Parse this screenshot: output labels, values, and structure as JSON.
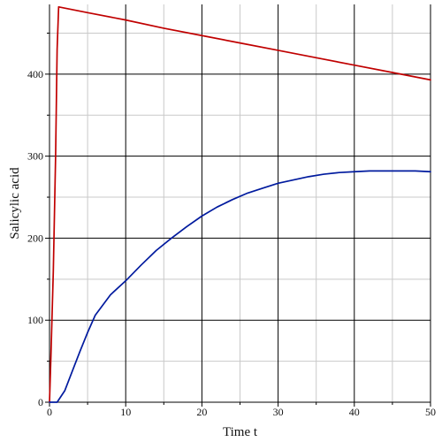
{
  "chart_data": {
    "type": "line",
    "title": "",
    "xlabel": "Time t",
    "ylabel": "Salicylic acid",
    "xlim": [
      0,
      50
    ],
    "ylim": [
      0,
      485
    ],
    "xticks": [
      0,
      10,
      20,
      30,
      40,
      50
    ],
    "yticks": [
      0,
      100,
      200,
      300,
      400
    ],
    "xtick_labels": [
      "0",
      "10",
      "20",
      "30",
      "40",
      "50"
    ],
    "ytick_labels": [
      "0",
      "100",
      "200",
      "300",
      "400"
    ],
    "grid": true,
    "legend": "none",
    "series": [
      {
        "color": "#c00000",
        "points": [
          [
            0.0,
            0
          ],
          [
            0.2,
            60
          ],
          [
            0.5,
            160
          ],
          [
            0.8,
            300
          ],
          [
            1.0,
            430
          ],
          [
            1.2,
            482
          ],
          [
            5,
            475
          ],
          [
            10,
            466
          ],
          [
            15,
            456
          ],
          [
            20,
            447
          ],
          [
            25,
            438
          ],
          [
            30,
            429
          ],
          [
            35,
            420
          ],
          [
            40,
            411
          ],
          [
            45,
            402
          ],
          [
            50,
            393
          ]
        ]
      },
      {
        "color": "#001a9e",
        "points": [
          [
            0.0,
            0
          ],
          [
            1.0,
            0
          ],
          [
            2.0,
            14
          ],
          [
            3.0,
            38
          ],
          [
            4.0,
            62
          ],
          [
            5.0,
            85
          ],
          [
            6.0,
            106
          ],
          [
            8.0,
            131
          ],
          [
            10.0,
            148
          ],
          [
            12.0,
            167
          ],
          [
            14.0,
            185
          ],
          [
            16.0,
            200
          ],
          [
            18.0,
            214
          ],
          [
            20.0,
            227
          ],
          [
            22.0,
            238
          ],
          [
            24.0,
            247
          ],
          [
            26.0,
            255
          ],
          [
            28.0,
            261
          ],
          [
            30.0,
            267
          ],
          [
            32.0,
            271
          ],
          [
            34.0,
            275
          ],
          [
            36.0,
            278
          ],
          [
            38.0,
            280
          ],
          [
            40.0,
            281
          ],
          [
            42.0,
            282
          ],
          [
            45.0,
            282
          ],
          [
            48.0,
            282
          ],
          [
            50.0,
            281
          ]
        ]
      }
    ]
  }
}
